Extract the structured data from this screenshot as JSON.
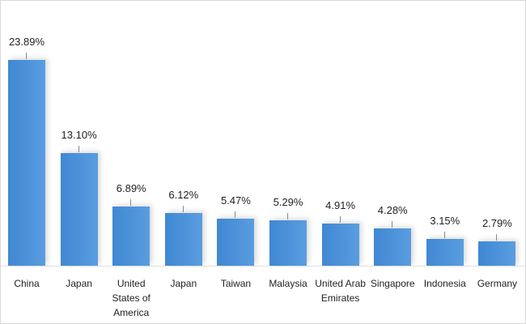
{
  "chart_data": {
    "type": "bar",
    "categories": [
      "China",
      "Japan",
      "United States of America",
      "Japan",
      "Taiwan",
      "Malaysia",
      "United Arab Emirates",
      "Singapore",
      "Indonesia",
      "Germany"
    ],
    "values": [
      23.89,
      13.1,
      6.89,
      6.12,
      5.47,
      5.29,
      4.91,
      4.28,
      3.15,
      2.79
    ],
    "value_labels": [
      "23.89%",
      "13.10%",
      "6.89%",
      "6.12%",
      "5.47%",
      "5.29%",
      "4.91%",
      "4.28%",
      "3.15%",
      "2.79%"
    ],
    "color": "#3f88d3"
  }
}
